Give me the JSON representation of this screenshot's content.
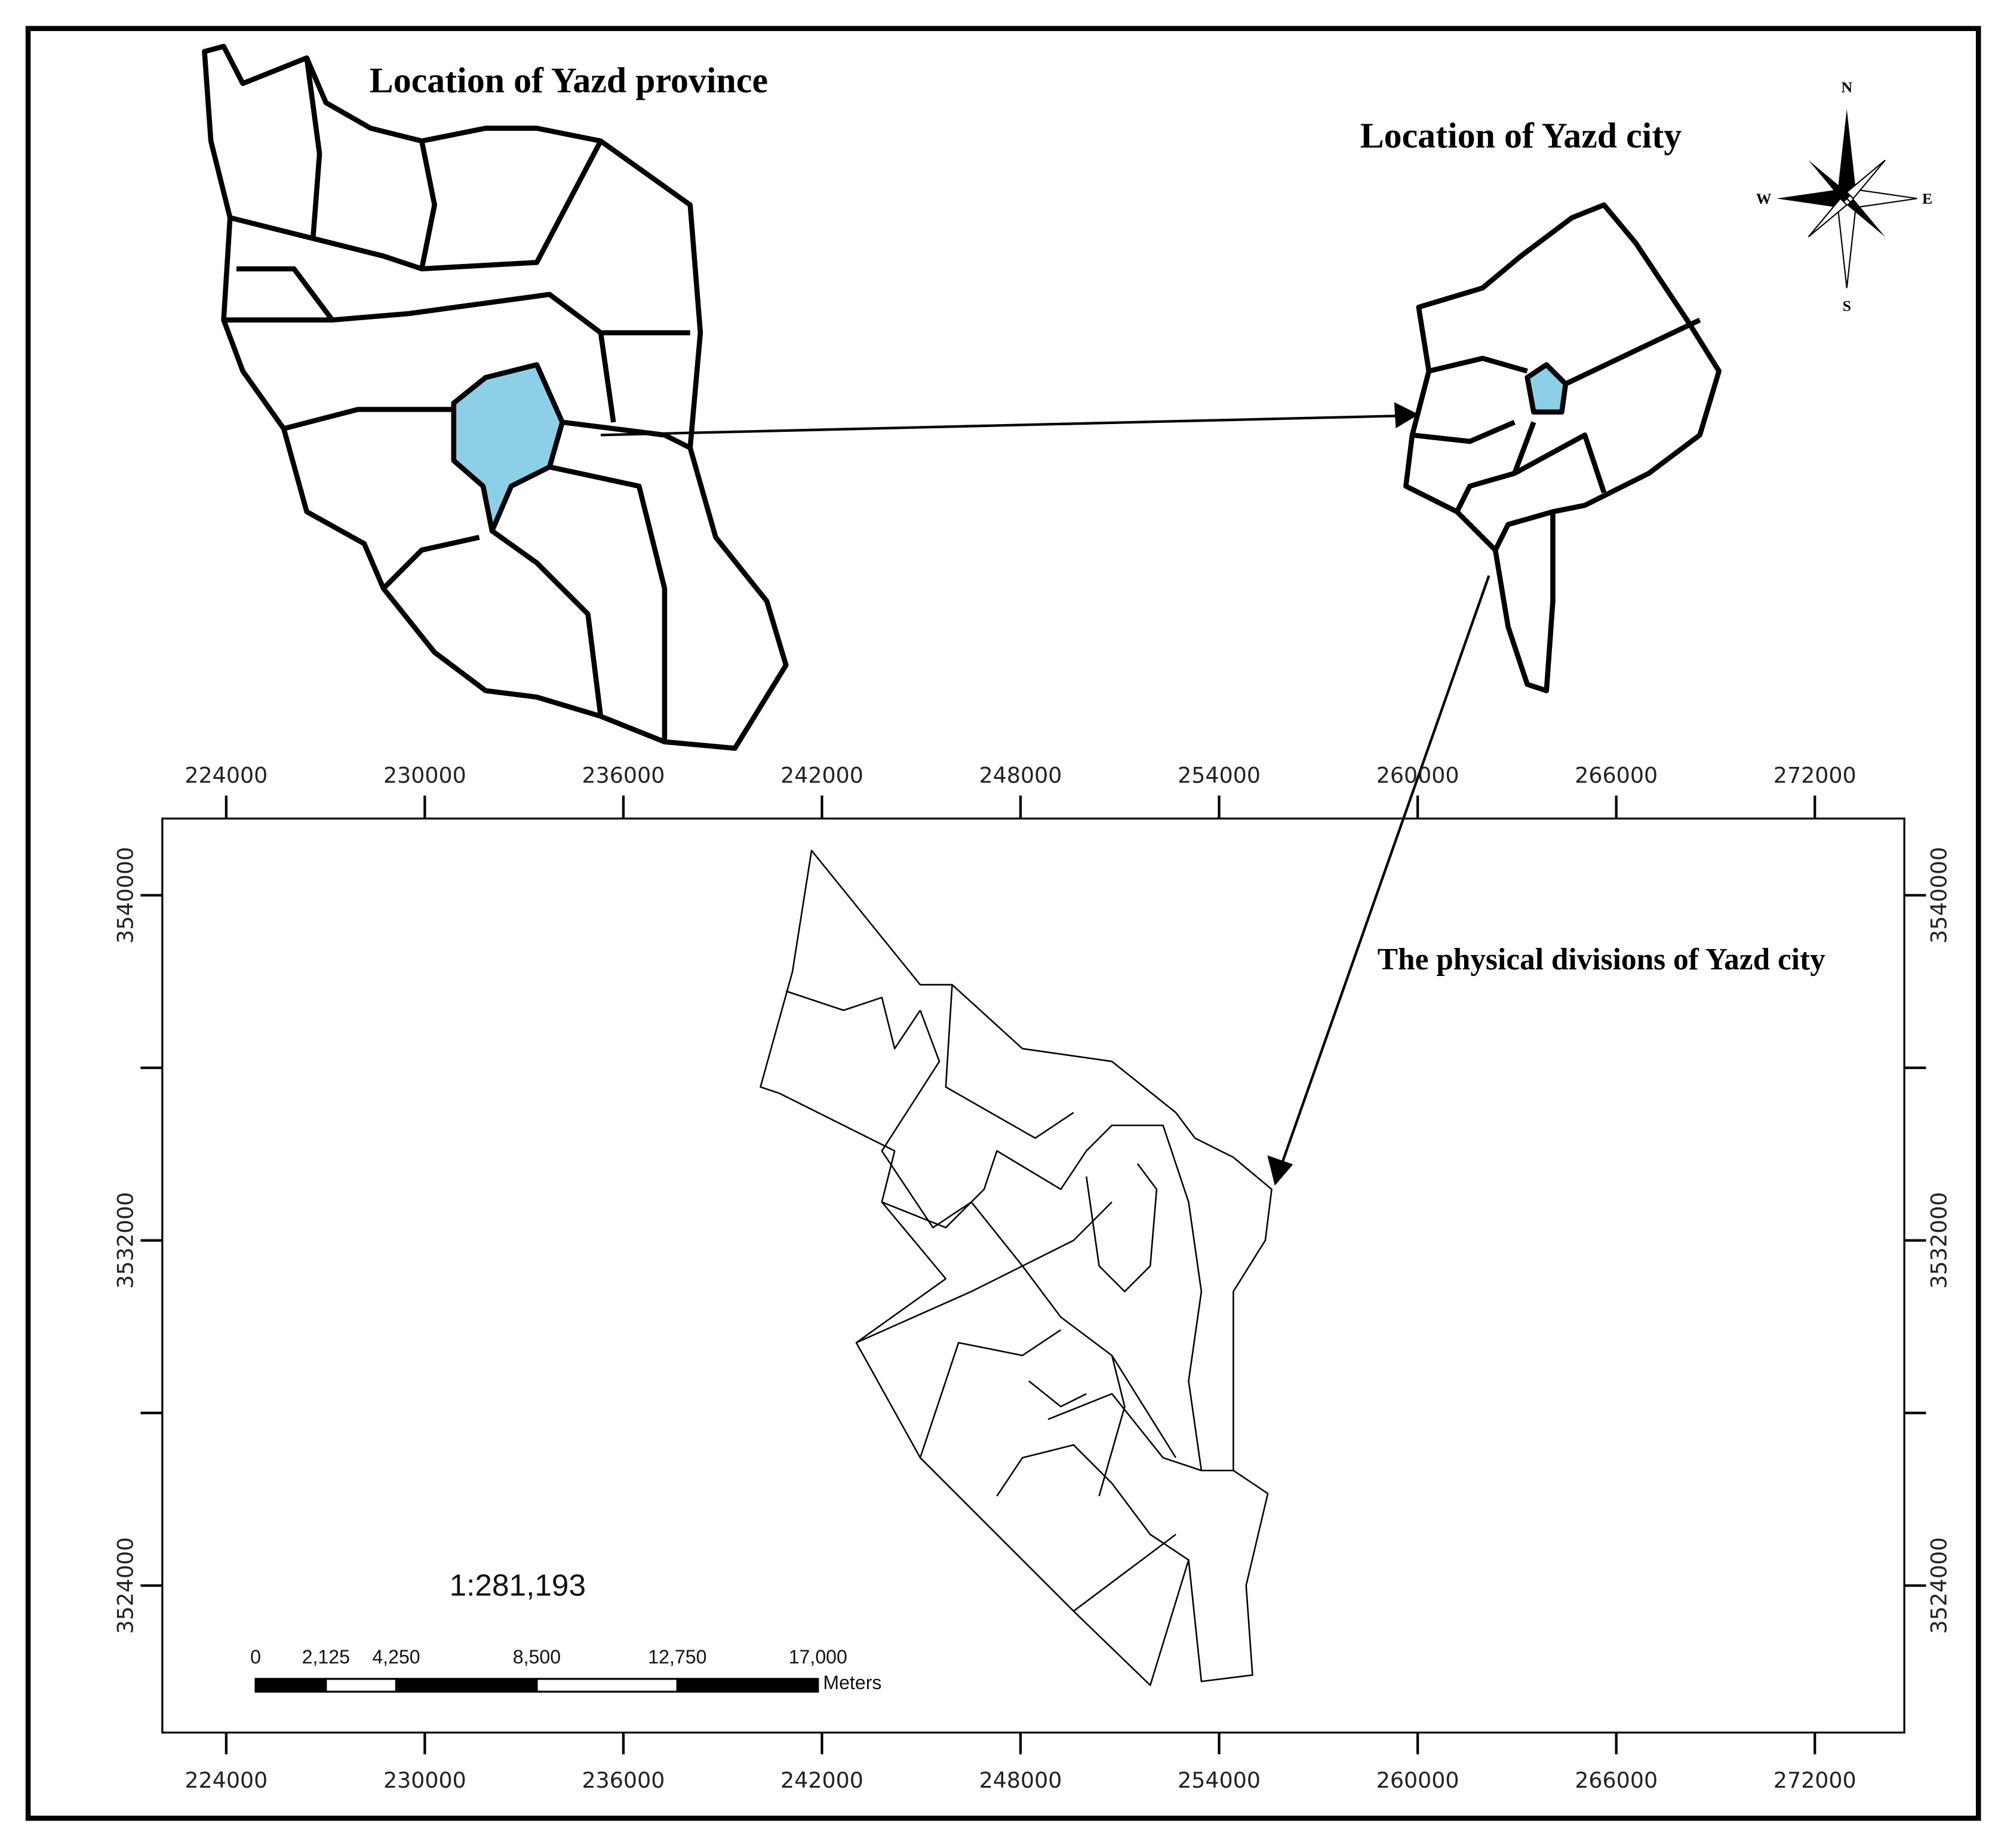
{
  "titles": {
    "province": "Location of Yazd province",
    "city": "Location of Yazd city",
    "divisions": "The physical divisions of Yazd city"
  },
  "compass": {
    "north": "N",
    "south": "S",
    "east": "E",
    "west": "W"
  },
  "axes": {
    "xticks": [
      224000,
      230000,
      236000,
      242000,
      248000,
      254000,
      260000,
      266000,
      272000
    ],
    "yticks": [
      3524000,
      3532000,
      3540000
    ]
  },
  "scale": {
    "ratio": "1:281,193",
    "ticks": [
      0,
      {
        "value": 2125,
        "label": "2,125"
      },
      {
        "value": 4250,
        "label": "4,250"
      },
      {
        "value": 8500,
        "label": "8,500"
      },
      {
        "value": 12750,
        "label": "12,750"
      },
      {
        "value": 17000,
        "label": "17,000"
      }
    ],
    "unit": "Meters"
  }
}
